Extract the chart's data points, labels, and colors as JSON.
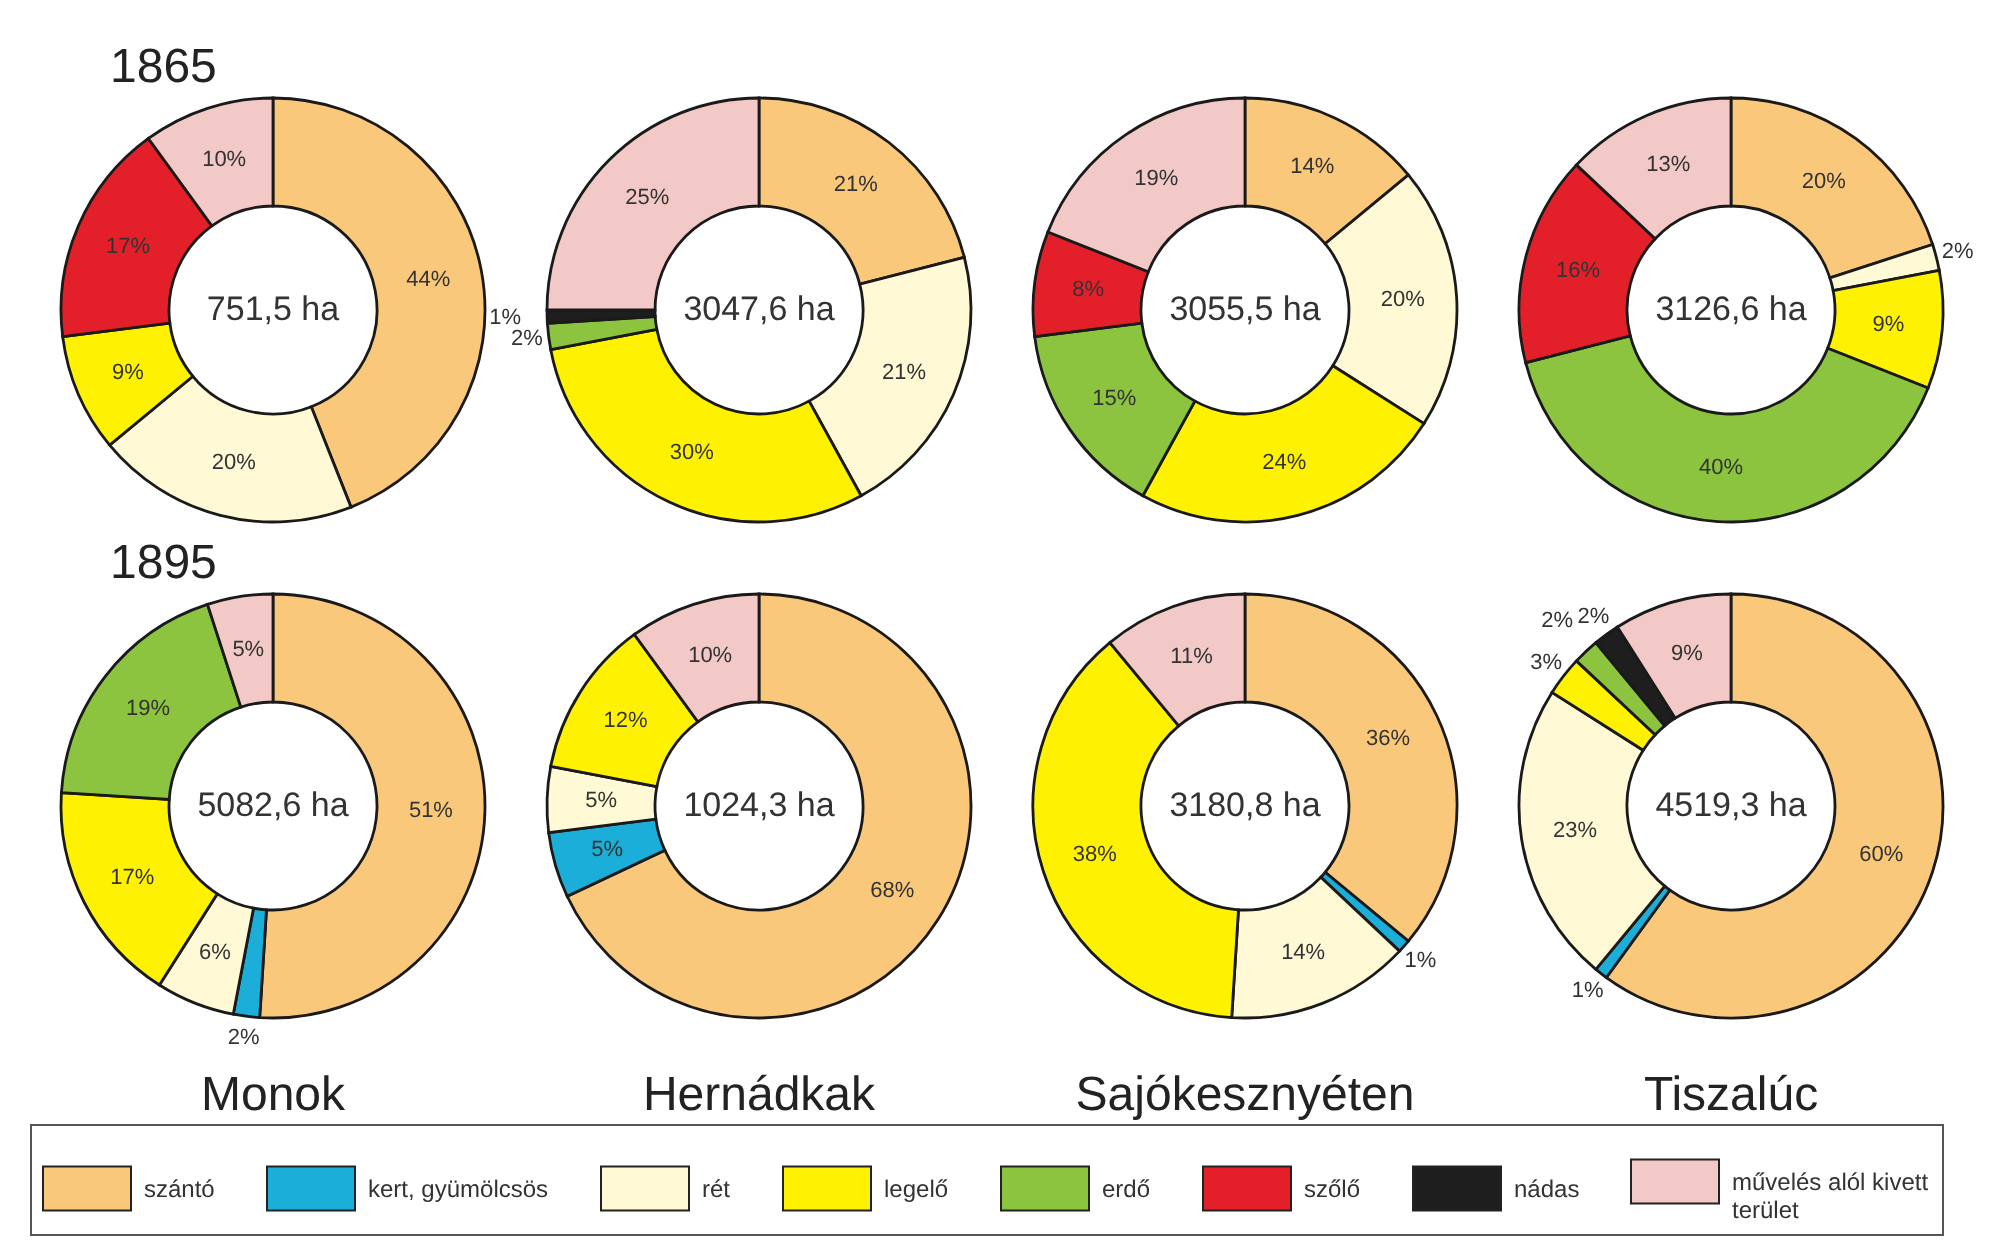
{
  "chart_data": [
    {
      "type": "donut",
      "title": "1865",
      "legend": "bottom",
      "categories": [
        "szántó",
        "kert, gyümölcsös",
        "rét",
        "legelő",
        "erdő",
        "szőlő",
        "nádas",
        "művelés alól kivett terület"
      ],
      "values": [
        44,
        null,
        20,
        9,
        null,
        17,
        null,
        10
      ],
      "colors": [
        "#f9c87a",
        "#1baed8",
        "#fff9d5",
        "#fff200",
        "#8cc43f",
        "#e3202a",
        "#1e1e1e",
        "#f2c9c6"
      ],
      "value_labels": [
        "44%",
        null,
        "20%",
        "9%",
        null,
        "17%",
        null,
        "10%"
      ],
      "annotations": [
        "751,5 ha"
      ]
    },
    {
      "type": "donut",
      "categories": [
        null,
        null,
        null,
        null,
        null,
        null,
        null,
        null
      ],
      "values": [
        21,
        null,
        21,
        30,
        2,
        null,
        1,
        25
      ],
      "colors": [
        "#f9c87a",
        "#1baed8",
        "#fff9d5",
        "#fff200",
        "#8cc43f",
        "#e3202a",
        "#1e1e1e",
        "#f2c9c6"
      ],
      "value_labels": [
        "21%",
        null,
        "21%",
        "30%",
        "2%",
        null,
        "1%",
        "25%"
      ],
      "annotations": [
        "3047,6 ha"
      ]
    },
    {
      "type": "donut",
      "categories": [
        null,
        null,
        null,
        null,
        null,
        null,
        null,
        null
      ],
      "values": [
        14,
        null,
        20,
        24,
        15,
        8,
        null,
        19
      ],
      "colors": [
        "#f9c87a",
        "#1baed8",
        "#fff9d5",
        "#fff200",
        "#8cc43f",
        "#e3202a",
        "#1e1e1e",
        "#f2c9c6"
      ],
      "value_labels": [
        "14%",
        null,
        "20%",
        "24%",
        "15%",
        "8%",
        null,
        "19%"
      ],
      "annotations": [
        "3055,5 ha"
      ]
    },
    {
      "type": "donut",
      "categories": [
        null,
        null,
        null,
        null,
        null,
        null,
        null,
        null
      ],
      "values": [
        20,
        null,
        2,
        9,
        40,
        16,
        null,
        13
      ],
      "colors": [
        "#f9c87a",
        "#1baed8",
        "#fff9d5",
        "#fff200",
        "#8cc43f",
        "#e3202a",
        "#1e1e1e",
        "#f2c9c6"
      ],
      "value_labels": [
        "20%",
        null,
        "2%",
        "9%",
        "40%",
        "16%",
        null,
        "13%"
      ],
      "annotations": [
        "3126,6 ha"
      ]
    },
    {
      "type": "donut",
      "title": "1895",
      "xlabel": "Monok",
      "categories": [
        null,
        null,
        null,
        null,
        null,
        null,
        null,
        null
      ],
      "values": [
        51,
        2,
        6,
        17,
        19,
        null,
        null,
        5
      ],
      "colors": [
        "#f9c87a",
        "#1baed8",
        "#fff9d5",
        "#fff200",
        "#8cc43f",
        "#e3202a",
        "#1e1e1e",
        "#f2c9c6"
      ],
      "value_labels": [
        "51%",
        "2%",
        "6%",
        "17%",
        "19%",
        null,
        null,
        "5%"
      ],
      "annotations": [
        "5082,6 ha"
      ]
    },
    {
      "type": "donut",
      "xlabel": "Hernádkak",
      "categories": [
        null,
        null,
        null,
        null,
        null,
        null,
        null,
        null
      ],
      "values": [
        68,
        5,
        5,
        12,
        null,
        null,
        null,
        10
      ],
      "colors": [
        "#f9c87a",
        "#1baed8",
        "#fff9d5",
        "#fff200",
        "#8cc43f",
        "#e3202a",
        "#1e1e1e",
        "#f2c9c6"
      ],
      "value_labels": [
        "68%",
        "5%",
        "5%",
        "12%",
        null,
        null,
        null,
        "10%"
      ],
      "annotations": [
        "1024,3 ha"
      ]
    },
    {
      "type": "donut",
      "xlabel": "Sajókesznyéten",
      "categories": [
        null,
        null,
        null,
        null,
        null,
        null,
        null,
        null
      ],
      "values": [
        36,
        1,
        14,
        38,
        null,
        null,
        null,
        11
      ],
      "colors": [
        "#f9c87a",
        "#1baed8",
        "#fff9d5",
        "#fff200",
        "#8cc43f",
        "#e3202a",
        "#1e1e1e",
        "#f2c9c6"
      ],
      "value_labels": [
        "36%",
        "1%",
        "14%",
        "38%",
        null,
        null,
        null,
        "11%"
      ],
      "annotations": [
        "3180,8 ha"
      ]
    },
    {
      "type": "donut",
      "xlabel": "Tiszalúc",
      "categories": [
        null,
        null,
        null,
        null,
        null,
        null,
        null,
        null
      ],
      "values": [
        60,
        1,
        23,
        3,
        2,
        null,
        2,
        9
      ],
      "colors": [
        "#f9c87a",
        "#1baed8",
        "#fff9d5",
        "#fff200",
        "#8cc43f",
        "#e3202a",
        "#1e1e1e",
        "#f2c9c6"
      ],
      "value_labels": [
        "60%",
        "1%",
        "23%",
        "3%",
        "2%",
        null,
        "2%",
        "9%"
      ],
      "annotations": [
        "4519,3 ha"
      ]
    }
  ]
}
